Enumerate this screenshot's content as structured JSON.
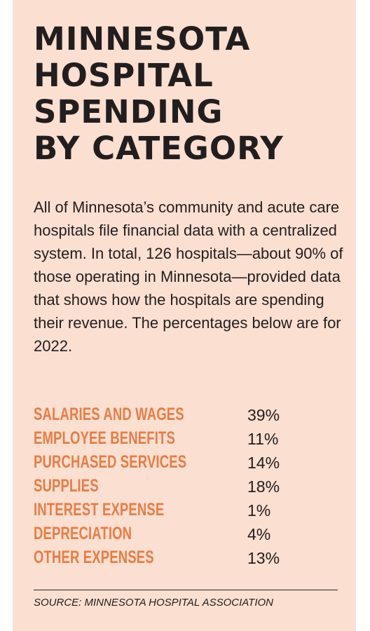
{
  "title_lines": [
    "MINNESOTA",
    "HOSPITAL",
    "SPENDING",
    "BY CATEGORY"
  ],
  "intro": "All of Minnesota’s community and acute care hospitals file financial data with a centralized system. In total, 126 hospitals—about 90% of those operating in Minnesota—provided data that shows how the hospitals are spending their revenue. The percentages below are for 2022.",
  "chart_data": {
    "type": "table",
    "year": "2022",
    "rows": [
      {
        "category": "SALARIES AND WAGES",
        "value": 39,
        "label": "39%"
      },
      {
        "category": "EMPLOYEE BENEFITS",
        "value": 11,
        "label": "11%"
      },
      {
        "category": "PURCHASED SERVICES",
        "value": 14,
        "label": "14%"
      },
      {
        "category": "SUPPLIES",
        "value": 18,
        "label": "18%"
      },
      {
        "category": "INTEREST EXPENSE",
        "value": 1,
        "label": "1%"
      },
      {
        "category": "DEPRECIATION",
        "value": 4,
        "label": "4%"
      },
      {
        "category": "OTHER EXPENSES",
        "value": 13,
        "label": "13%"
      }
    ]
  },
  "source": "SOURCE: MINNESOTA HOSPITAL ASSOCIATION",
  "colors": {
    "background": "#fbdfd1",
    "category_text": "#e87d45",
    "body_text": "#221e1f"
  }
}
